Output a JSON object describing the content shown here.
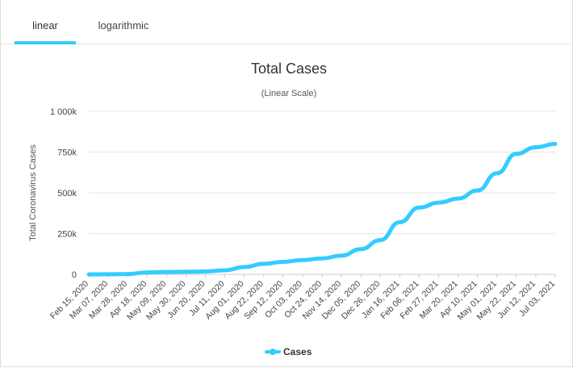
{
  "tabs": [
    {
      "label": "linear",
      "active": true
    },
    {
      "label": "logarithmic",
      "active": false
    }
  ],
  "colors": {
    "accent": "#33ccff",
    "series": "#33ccff",
    "grid": "#e6e6e6"
  },
  "chart_data": {
    "type": "line",
    "title": "Total Cases",
    "subtitle": "(Linear Scale)",
    "xlabel": "",
    "ylabel": "Total Coronavirus Cases",
    "ylim": [
      0,
      1000000
    ],
    "yticks": [
      {
        "value": 0,
        "label": "0"
      },
      {
        "value": 250000,
        "label": "250k"
      },
      {
        "value": 500000,
        "label": "500k"
      },
      {
        "value": 750000,
        "label": "750k"
      },
      {
        "value": 1000000,
        "label": "1 000k"
      }
    ],
    "categories": [
      "Feb 15, 2020",
      "Mar 07, 2020",
      "Mar 28, 2020",
      "Apr 18, 2020",
      "May 09, 2020",
      "May 30, 2020",
      "Jun 20, 2020",
      "Jul 11, 2020",
      "Aug 01, 2020",
      "Aug 22, 2020",
      "Sep 12, 2020",
      "Oct 03, 2020",
      "Oct 24, 2020",
      "Nov 14, 2020",
      "Dec 05, 2020",
      "Dec 26, 2020",
      "Jan 16, 2021",
      "Feb 06, 2021",
      "Feb 27, 2021",
      "Mar 20, 2021",
      "Apr 10, 2021",
      "May 01, 2021",
      "May 22, 2021",
      "Jun 12, 2021",
      "Jul 03, 2021"
    ],
    "series": [
      {
        "name": "Cases",
        "values": [
          0,
          500,
          2000,
          12000,
          15000,
          16000,
          18000,
          25000,
          45000,
          65000,
          77000,
          88000,
          98000,
          115000,
          155000,
          210000,
          320000,
          410000,
          440000,
          465000,
          515000,
          620000,
          740000,
          780000,
          800000
        ]
      }
    ],
    "legend": {
      "position": "bottom-center",
      "label": "Cases"
    },
    "grid": true
  }
}
